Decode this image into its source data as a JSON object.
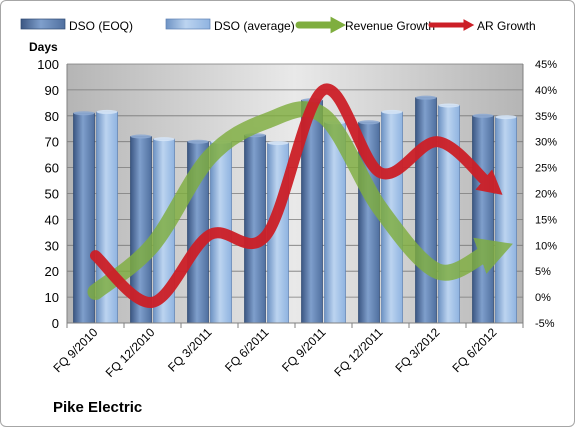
{
  "company": "Pike Electric",
  "chart_data": {
    "type": "bar",
    "categories": [
      "FQ 9/2010",
      "FQ 12/2010",
      "FQ 3/2011",
      "FQ 6/2011",
      "FQ 9/2011",
      "FQ 12/2011",
      "FQ 3/2012",
      "FQ 6/2012"
    ],
    "ylabel": "Days",
    "ylim": [
      0,
      100
    ],
    "yticks": [
      "0",
      "10",
      "20",
      "30",
      "40",
      "50",
      "60",
      "70",
      "80",
      "90",
      "100"
    ],
    "y2lim": [
      -5,
      45
    ],
    "y2ticks": [
      "-5%",
      "0%",
      "5%",
      "10%",
      "15%",
      "20%",
      "25%",
      "30%",
      "35%",
      "40%",
      "45%"
    ],
    "legend_position": "top",
    "grid": true,
    "series": [
      {
        "name": "DSO (EOQ)",
        "kind": "bar",
        "axis": "left",
        "color": "#4f6f9f",
        "values": [
          81,
          72,
          70,
          72.5,
          86,
          77.5,
          87,
          80
        ]
      },
      {
        "name": "DSO (average)",
        "kind": "bar",
        "axis": "left",
        "color": "#8fb3e0",
        "values": [
          81.5,
          71,
          70,
          69.5,
          77.5,
          81.5,
          84,
          79.5
        ]
      },
      {
        "name": "Revenue Growth",
        "kind": "arrow-line",
        "axis": "right",
        "color": "#7fae3f",
        "values": [
          1,
          10,
          27,
          34,
          35,
          17,
          5,
          9
        ]
      },
      {
        "name": "AR Growth",
        "kind": "arrow-line",
        "axis": "right",
        "color": "#cc1f27",
        "values": [
          8,
          -1,
          12,
          12,
          40,
          24,
          30,
          21
        ]
      }
    ]
  }
}
